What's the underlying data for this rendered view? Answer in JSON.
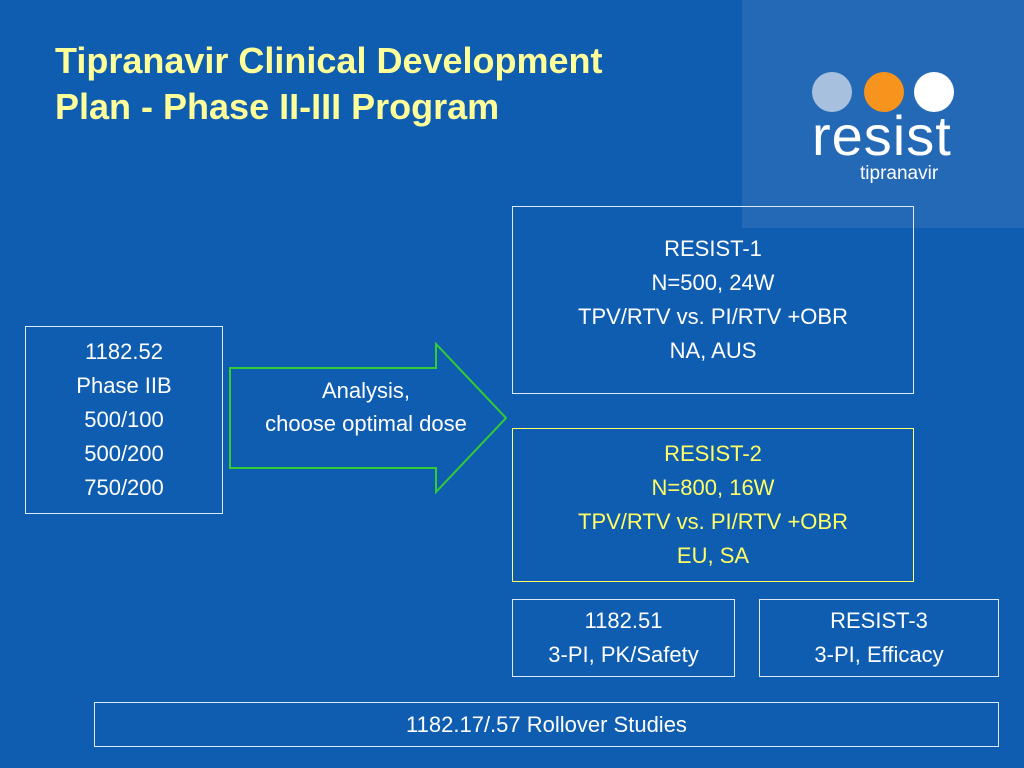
{
  "title": {
    "line1": "Tipranavir Clinical Development",
    "line2": "Plan - Phase II-III Program"
  },
  "logo": {
    "word": "resist",
    "sub": "tipranavir",
    "dot_colors": [
      "#a7c0de",
      "#f7941d",
      "#ffffff"
    ]
  },
  "colors": {
    "background": "#0f5db0",
    "title": "#ffff99",
    "highlight": "#ffff66",
    "arrow_stroke": "#33cc33"
  },
  "phase2b": {
    "lines": [
      "1182.52",
      "Phase IIB",
      "500/100",
      "500/200",
      "750/200"
    ]
  },
  "arrow": {
    "lines": [
      "Analysis,",
      "choose optimal dose"
    ]
  },
  "resist1": {
    "lines": [
      "RESIST-1",
      "N=500, 24W",
      "TPV/RTV vs. PI/RTV +OBR",
      "NA, AUS"
    ]
  },
  "resist2": {
    "lines": [
      "RESIST-2",
      "N=800, 16W",
      "TPV/RTV vs. PI/RTV +OBR",
      "EU, SA"
    ]
  },
  "study_1182_51": {
    "lines": [
      "1182.51",
      "3-PI, PK/Safety"
    ]
  },
  "resist3": {
    "lines": [
      "RESIST-3",
      "3-PI, Efficacy"
    ]
  },
  "rollover": {
    "label": "1182.17/.57 Rollover Studies"
  }
}
